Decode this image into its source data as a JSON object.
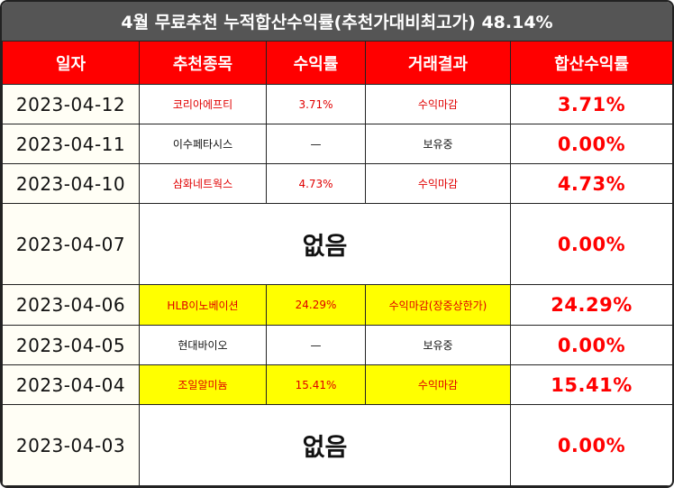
{
  "title": "4월 무료추천 누적합산수익률(추천가대비최고가) 48.14%",
  "headers": [
    "일자",
    "추천종목",
    "수익률",
    "거래결과",
    "합산수익률"
  ],
  "rows": [
    {
      "date": "2023-04-12",
      "stock": "코리아에프티",
      "return": "3.71%",
      "result": "수익마감",
      "cumulative": "3.71%"
    },
    {
      "date": "2023-04-11",
      "stock": "이수페타시스",
      "return": "—",
      "result": "보유중",
      "cumulative": "0.00%"
    },
    {
      "date": "2023-04-10",
      "stock": "삼화네트웍스",
      "return": "4.73%",
      "result": "수익마감",
      "cumulative": "4.73%"
    },
    {
      "date": "2023-04-07",
      "none": "없음",
      "cumulative": "0.00%"
    },
    {
      "date": "2023-04-06",
      "stock": "HLB이노베이션",
      "return": "24.29%",
      "result": "수익마감(장중상한가)",
      "cumulative": "24.29%"
    },
    {
      "date": "2023-04-05",
      "stock": "현대바이오",
      "return": "—",
      "result": "보유중",
      "cumulative": "0.00%"
    },
    {
      "date": "2023-04-04",
      "stock": "조일알미늄",
      "return": "15.41%",
      "result": "수익마감",
      "cumulative": "15.41%"
    },
    {
      "date": "2023-04-03",
      "none": "없음",
      "cumulative": "0.00%"
    }
  ],
  "colors": {
    "header_bg": "#ff0000",
    "title_bg": "#555555",
    "highlight": "#ffff00",
    "accent_text": "#ff0000"
  }
}
